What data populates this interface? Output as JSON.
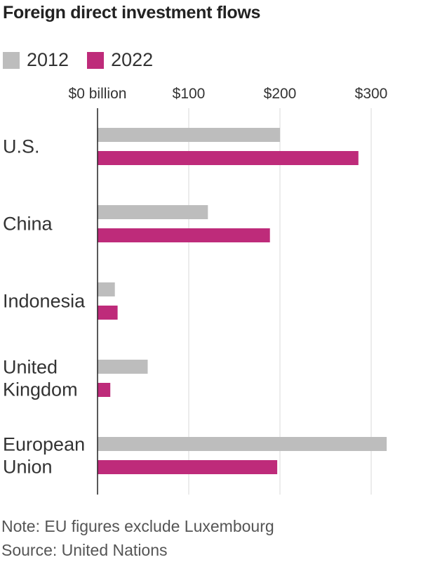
{
  "chart_data": {
    "type": "bar",
    "orientation": "horizontal",
    "title": "Foreign direct investment flows",
    "categories": [
      [
        "U.S."
      ],
      [
        "China"
      ],
      [
        "Indonesia"
      ],
      [
        "United",
        "Kingdom"
      ],
      [
        "European",
        "Union"
      ]
    ],
    "series": [
      {
        "name": "2012",
        "color": "#bdbdbd",
        "values": [
          200,
          121,
          19,
          55,
          317
        ]
      },
      {
        "name": "2022",
        "color": "#be2b7a",
        "values": [
          286,
          189,
          22,
          14,
          197
        ]
      }
    ],
    "xlim": [
      0,
      320
    ],
    "xticks": [
      {
        "value": 0,
        "label": "$0 billion"
      },
      {
        "value": 100,
        "label": "$100"
      },
      {
        "value": 200,
        "label": "$200"
      },
      {
        "value": 300,
        "label": "$300"
      }
    ],
    "grid": true,
    "legend_position": "top-left",
    "note": "Note: EU figures exclude Luxembourg",
    "source": "Source: United Nations"
  }
}
